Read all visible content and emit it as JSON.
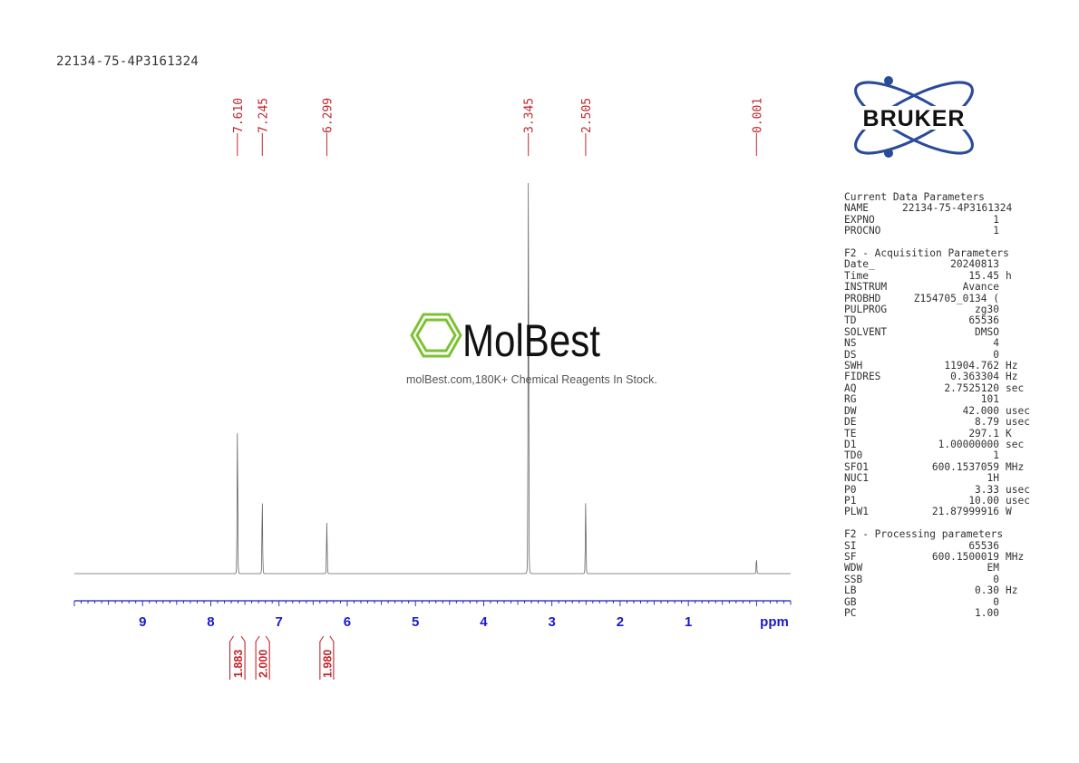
{
  "sample_name": "22134-75-4P3161324",
  "logo_text": "BRUKER",
  "watermark": {
    "brand": "MolBest",
    "tagline": "molBest.com,180K+ Chemical Reagents In Stock."
  },
  "colors": {
    "spectrum": "#666666",
    "axis": "#1a1acc",
    "peak_labels": "#c0272d",
    "integrals": "#c0272d",
    "logo_orbit": "#2a4a9a",
    "watermark_green": "#7dc232"
  },
  "chart_data": {
    "type": "line",
    "title": "22134-75-4P3161324",
    "xlabel": "ppm",
    "ylabel": "",
    "xlim": [
      10.0,
      -0.5
    ],
    "x_axis_reversed": true,
    "x_ticks": [
      9,
      8,
      7,
      6,
      5,
      4,
      3,
      2,
      1
    ],
    "peaks": [
      {
        "ppm": 7.61,
        "label": "7.610",
        "relative_height": 0.36
      },
      {
        "ppm": 7.245,
        "label": "7.245",
        "relative_height": 0.18
      },
      {
        "ppm": 6.299,
        "label": "6.299",
        "relative_height": 0.13
      },
      {
        "ppm": 3.345,
        "label": "3.345",
        "relative_height": 1.0
      },
      {
        "ppm": 2.505,
        "label": "2.505",
        "relative_height": 0.18
      },
      {
        "ppm": 0.001,
        "label": "0.001",
        "relative_height": 0.035
      }
    ],
    "integrals": [
      {
        "from_ppm": 7.72,
        "to_ppm": 7.5,
        "value": "1.883"
      },
      {
        "from_ppm": 7.34,
        "to_ppm": 7.14,
        "value": "2.000"
      },
      {
        "from_ppm": 6.4,
        "to_ppm": 6.2,
        "value": "1.980"
      }
    ]
  },
  "parameters": [
    {
      "heading": "Current Data Parameters",
      "rows": [
        {
          "key": "NAME",
          "value": "22134-75-4P3161324",
          "unit": ""
        },
        {
          "key": "EXPNO",
          "value": "1",
          "unit": ""
        },
        {
          "key": "PROCNO",
          "value": "1",
          "unit": ""
        }
      ]
    },
    {
      "heading": "F2 - Acquisition Parameters",
      "rows": [
        {
          "key": "Date_",
          "value": "20240813",
          "unit": ""
        },
        {
          "key": "Time",
          "value": "15.45",
          "unit": "h"
        },
        {
          "key": "INSTRUM",
          "value": "Avance",
          "unit": ""
        },
        {
          "key": "PROBHD",
          "value": "Z154705_0134 (",
          "unit": ""
        },
        {
          "key": "PULPROG",
          "value": "zg30",
          "unit": ""
        },
        {
          "key": "TD",
          "value": "65536",
          "unit": ""
        },
        {
          "key": "SOLVENT",
          "value": "DMSO",
          "unit": ""
        },
        {
          "key": "NS",
          "value": "4",
          "unit": ""
        },
        {
          "key": "DS",
          "value": "0",
          "unit": ""
        },
        {
          "key": "SWH",
          "value": "11904.762",
          "unit": "Hz"
        },
        {
          "key": "FIDRES",
          "value": "0.363304",
          "unit": "Hz"
        },
        {
          "key": "AQ",
          "value": "2.7525120",
          "unit": "sec"
        },
        {
          "key": "RG",
          "value": "101",
          "unit": ""
        },
        {
          "key": "DW",
          "value": "42.000",
          "unit": "usec"
        },
        {
          "key": "DE",
          "value": "8.79",
          "unit": "usec"
        },
        {
          "key": "TE",
          "value": "297.1",
          "unit": "K"
        },
        {
          "key": "D1",
          "value": "1.00000000",
          "unit": "sec"
        },
        {
          "key": "TD0",
          "value": "1",
          "unit": ""
        },
        {
          "key": "SFO1",
          "value": "600.1537059",
          "unit": "MHz"
        },
        {
          "key": "NUC1",
          "value": "1H",
          "unit": ""
        },
        {
          "key": "P0",
          "value": "3.33",
          "unit": "usec"
        },
        {
          "key": "P1",
          "value": "10.00",
          "unit": "usec"
        },
        {
          "key": "PLW1",
          "value": "21.87999916",
          "unit": "W"
        }
      ]
    },
    {
      "heading": "F2 - Processing parameters",
      "rows": [
        {
          "key": "SI",
          "value": "65536",
          "unit": ""
        },
        {
          "key": "SF",
          "value": "600.1500019",
          "unit": "MHz"
        },
        {
          "key": "WDW",
          "value": "EM",
          "unit": ""
        },
        {
          "key": "SSB",
          "value": "0",
          "unit": ""
        },
        {
          "key": "LB",
          "value": "0.30",
          "unit": "Hz"
        },
        {
          "key": "GB",
          "value": "0",
          "unit": ""
        },
        {
          "key": "PC",
          "value": "1.00",
          "unit": ""
        }
      ]
    }
  ]
}
